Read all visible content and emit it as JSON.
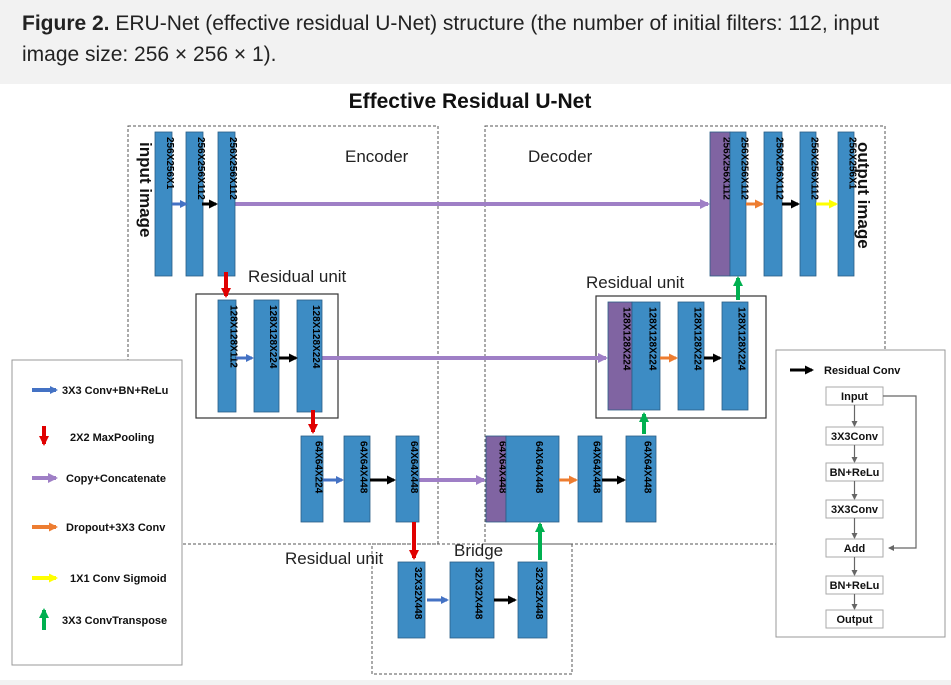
{
  "caption": {
    "bold": "Figure 2.",
    "text": " ERU-Net (effective residual U-Net) structure (the number of initial filters: 112, input image size: 256 × 256 × 1)."
  },
  "diagram": {
    "title": "Effective Residual U-Net",
    "encoder_label": "Encoder",
    "decoder_label": "Decoder",
    "residual_unit_label": "Residual unit",
    "bridge_label": "Bridge",
    "input_label": "input image",
    "output_label": "output image",
    "blocks": {
      "e1a": "256X256X1",
      "e1b": "256X256X112",
      "e1c": "256X256X112",
      "e2a": "128X128X112",
      "e2b": "128X128X224",
      "e2c": "128X128X224",
      "e3a": "64X64X224",
      "e3b": "64X64X448",
      "e3c": "64X64X448",
      "b1": "32X32X448",
      "b2": "32X32X448",
      "b3": "32X32X448",
      "d3a": "64X64X448",
      "d3b": "64X64X448",
      "d3c": "64X64X448",
      "d3d": "64X64X448",
      "d2a": "128X128X224",
      "d2b": "128X128X224",
      "d2c": "128X128X224",
      "d2d": "128X128X224",
      "d1a": "256X256X112",
      "d1b": "256X256X112",
      "d1c": "256X256X112",
      "d1d": "256X256X112",
      "d1e": "256X256X1"
    },
    "legend": [
      {
        "label": "3X3 Conv+BN+ReLu",
        "color": "#4472c4"
      },
      {
        "label": "2X2 MaxPooling",
        "color": "#e00000"
      },
      {
        "label": "Copy+Concatenate",
        "color": "#9f7fc6"
      },
      {
        "label": "Dropout+3X3 Conv",
        "color": "#ed7d31"
      },
      {
        "label": "1X1 Conv Sigmoid",
        "color": "#ffff00"
      },
      {
        "label": "3X3 ConvTranspose",
        "color": "#00b050"
      }
    ],
    "residual_conv": {
      "title": "Residual Conv",
      "steps": [
        "Input",
        "3X3Conv",
        "BN+ReLu",
        "3X3Conv",
        "Add",
        "BN+ReLu",
        "Output"
      ]
    },
    "colors": {
      "block_blue": "#3d8cc4",
      "block_purple": "#8064a2"
    }
  }
}
